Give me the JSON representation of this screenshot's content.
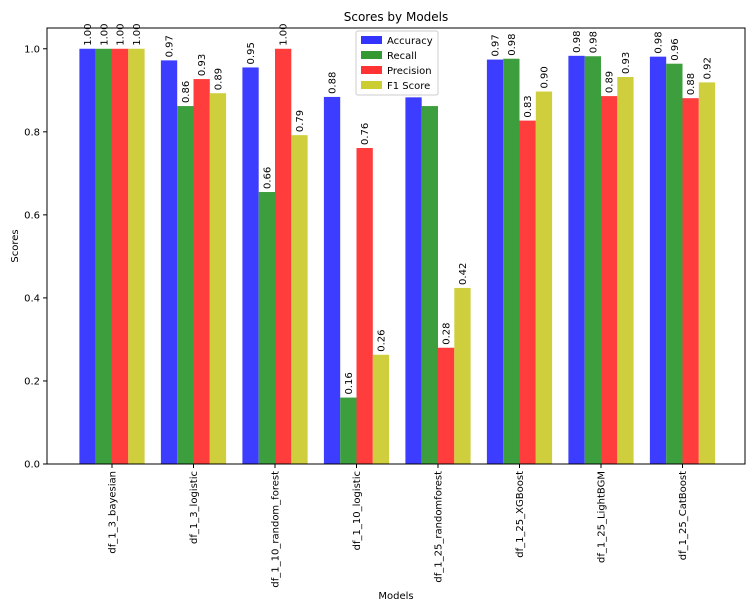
{
  "chart_data": {
    "type": "bar",
    "title": "Scores by Models",
    "xlabel": "Models",
    "ylabel": "Scores",
    "ylim": [
      0,
      1.05
    ],
    "yticks": [
      "0.0",
      "0.2",
      "0.4",
      "0.6",
      "0.8",
      "1.0"
    ],
    "ytick_values": [
      0,
      0.2,
      0.4,
      0.6,
      0.8,
      1.0
    ],
    "legend_position": "top-center",
    "grid": false,
    "categories": [
      "df_1_3_bayesian",
      "df_1_3_logistic",
      "df_1_10_random_forest",
      "df_1_10_logistic",
      "df_1_25_randomforest",
      "df_1_25_XGBoost",
      "df_1_25_LightBGM",
      "df_1_25_CatBoost"
    ],
    "series": [
      {
        "name": "Accuracy",
        "color": "#3333ff",
        "values": [
          1.0,
          0.972,
          0.955,
          0.884,
          0.883,
          0.974,
          0.983,
          0.981
        ],
        "labels": [
          "1.00",
          "0.97",
          "0.95",
          "0.88",
          "",
          "0.97",
          "0.98",
          "0.98"
        ]
      },
      {
        "name": "Recall",
        "color": "#339933",
        "values": [
          1.0,
          0.862,
          0.655,
          0.16,
          0.862,
          0.976,
          0.982,
          0.964
        ],
        "labels": [
          "1.00",
          "0.86",
          "0.66",
          "0.16",
          "",
          "0.98",
          "0.98",
          "0.96"
        ]
      },
      {
        "name": "Precision",
        "color": "#ff3333",
        "values": [
          1.0,
          0.927,
          1.0,
          0.761,
          0.28,
          0.827,
          0.886,
          0.881
        ],
        "labels": [
          "1.00",
          "0.93",
          "1.00",
          "0.76",
          "0.28",
          "0.83",
          "0.89",
          "0.88"
        ]
      },
      {
        "name": "F1 Score",
        "color": "#cccc33",
        "values": [
          1.0,
          0.893,
          0.792,
          0.263,
          0.424,
          0.897,
          0.932,
          0.919
        ],
        "labels": [
          "1.00",
          "0.89",
          "0.79",
          "0.26",
          "0.42",
          "0.90",
          "0.93",
          "0.92"
        ]
      }
    ]
  }
}
